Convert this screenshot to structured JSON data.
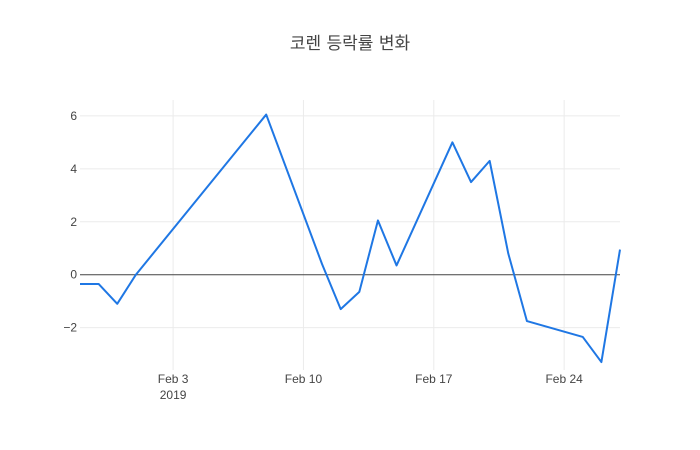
{
  "chart_data": {
    "type": "line",
    "title": "코렌 등락률 변화",
    "xlabel": "",
    "ylabel": "",
    "x": [
      "2019-01-29",
      "2019-01-30",
      "2019-01-31",
      "2019-02-01",
      "2019-02-08",
      "2019-02-11",
      "2019-02-12",
      "2019-02-13",
      "2019-02-14",
      "2019-02-15",
      "2019-02-18",
      "2019-02-19",
      "2019-02-20",
      "2019-02-21",
      "2019-02-22",
      "2019-02-25",
      "2019-02-26",
      "2019-02-27"
    ],
    "series": [
      {
        "values": [
          -0.35,
          -0.35,
          -1.1,
          0.0,
          6.05,
          0.4,
          -1.3,
          -0.65,
          2.05,
          0.35,
          5.0,
          3.5,
          4.3,
          0.8,
          -1.75,
          -2.35,
          -3.3,
          0.95
        ],
        "color": "#1f77e4"
      }
    ],
    "xlim": [
      "2019-01-29",
      "2019-02-27"
    ],
    "ylim": [
      -3.6,
      6.6
    ],
    "x_ticks": [
      {
        "date": "2019-02-03",
        "label": "Feb 3",
        "sublabel": "2019"
      },
      {
        "date": "2019-02-10",
        "label": "Feb 10",
        "sublabel": ""
      },
      {
        "date": "2019-02-17",
        "label": "Feb 17",
        "sublabel": ""
      },
      {
        "date": "2019-02-24",
        "label": "Feb 24",
        "sublabel": ""
      }
    ],
    "y_ticks": [
      {
        "value": -2,
        "label": "−2"
      },
      {
        "value": 0,
        "label": "0"
      },
      {
        "value": 2,
        "label": "2"
      },
      {
        "value": 4,
        "label": "4"
      },
      {
        "value": 6,
        "label": "6"
      }
    ],
    "grid": true,
    "zero_line": true,
    "legend": false
  }
}
